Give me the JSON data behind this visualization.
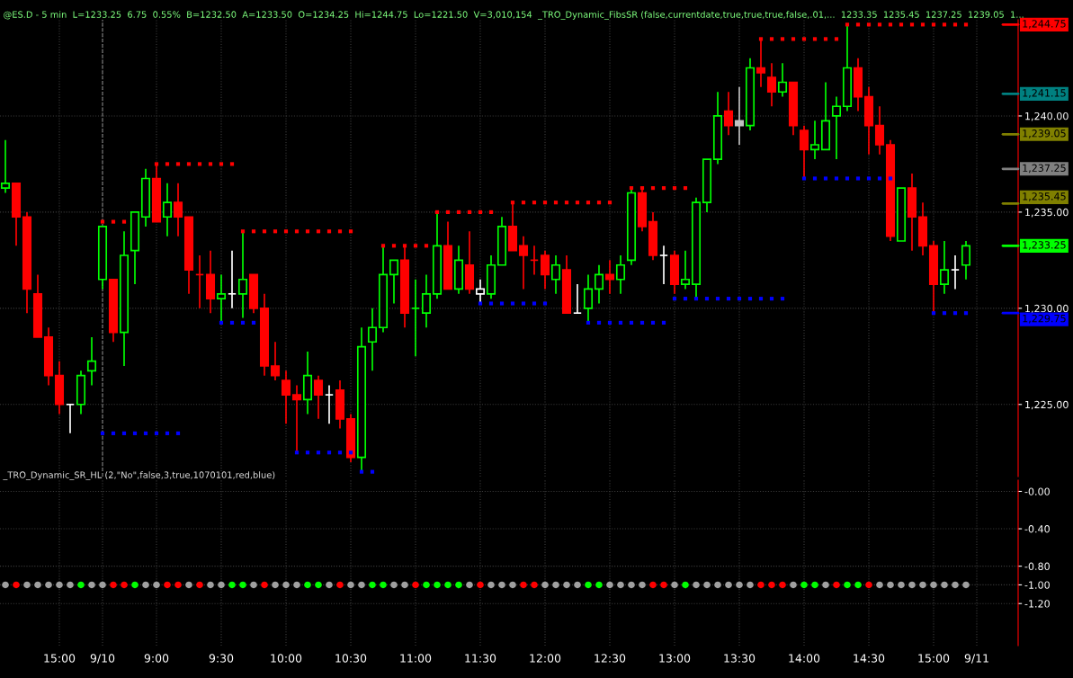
{
  "chart_data": [
    {
      "type": "candlestick",
      "title": "@ES.D - 5 min  L=1233.25  6.75  0.55%  B=1232.50  A=1233.50  O=1234.25  Hi=1244.75  Lo=1221.50  V=3,010,154  _TRO_Dynamic_FibsSR (false,currentdate,true,true,true,false,.01,...  1233.35  1235.45  1237.25  1239.05  1...",
      "categories": [
        null,
        null,
        null,
        null,
        null,
        "15:00",
        null,
        null,
        null,
        "9/10",
        null,
        null,
        null,
        null,
        "9:00",
        null,
        null,
        null,
        null,
        null,
        "9:30",
        null,
        null,
        null,
        null,
        null,
        "10:00",
        null,
        null,
        null,
        null,
        null,
        "10:30",
        null,
        null,
        null,
        null,
        null,
        "11:00",
        null,
        null,
        null,
        null,
        null,
        "11:30",
        null,
        null,
        null,
        null,
        null,
        "12:00",
        null,
        null,
        null,
        null,
        null,
        "12:30",
        null,
        null,
        null,
        null,
        null,
        "13:00",
        null,
        null,
        null,
        null,
        null,
        "13:30",
        null,
        null,
        null,
        null,
        null,
        "14:00",
        null,
        null,
        null,
        null,
        null,
        "14:30",
        null,
        null,
        null,
        null,
        null,
        "15:00",
        null,
        null,
        null,
        "9/11"
      ],
      "ohlc": [
        [
          1236.25,
          1238.75,
          1236.0,
          1236.5
        ],
        [
          1236.5,
          1236.5,
          1233.25,
          1234.75
        ],
        [
          1234.75,
          1235.0,
          1229.75,
          1231.0
        ],
        [
          1230.75,
          1231.75,
          1228.5,
          1228.5
        ],
        [
          1228.5,
          1229.0,
          1226.0,
          1226.5
        ],
        [
          1226.5,
          1227.25,
          1224.5,
          1225.0
        ],
        [
          1225.0,
          1225.0,
          1223.5,
          1225.0
        ],
        [
          1225.0,
          1226.75,
          1224.5,
          1226.5
        ],
        [
          1226.75,
          1228.5,
          1226.0,
          1227.25
        ],
        [
          1231.5,
          1234.25,
          1231.0,
          1234.25
        ],
        [
          1231.5,
          1231.5,
          1228.25,
          1228.75
        ],
        [
          1228.75,
          1234.0,
          1227.0,
          1232.75
        ],
        [
          1233.0,
          1235.0,
          1231.25,
          1235.0
        ],
        [
          1234.75,
          1237.25,
          1234.25,
          1236.75
        ],
        [
          1236.75,
          1237.5,
          1234.5,
          1234.5
        ],
        [
          1234.75,
          1236.5,
          1233.75,
          1235.5
        ],
        [
          1235.5,
          1236.5,
          1233.75,
          1234.75
        ],
        [
          1234.75,
          1234.75,
          1230.75,
          1232.0
        ],
        [
          1231.75,
          1232.75,
          1230.0,
          1231.75
        ],
        [
          1231.75,
          1233.0,
          1229.75,
          1230.5
        ],
        [
          1230.5,
          1231.75,
          1229.25,
          1230.75
        ],
        [
          1230.75,
          1233.0,
          1230.0,
          1230.75
        ],
        [
          1230.75,
          1234.0,
          1229.5,
          1231.5
        ],
        [
          1231.75,
          1231.75,
          1229.75,
          1230.0
        ],
        [
          1230.0,
          1230.75,
          1226.5,
          1227.0
        ],
        [
          1227.0,
          1228.25,
          1226.25,
          1226.5
        ],
        [
          1226.25,
          1226.75,
          1224.0,
          1225.5
        ],
        [
          1225.5,
          1226.0,
          1222.5,
          1225.25
        ],
        [
          1225.25,
          1227.75,
          1224.5,
          1226.5
        ],
        [
          1226.25,
          1226.5,
          1224.25,
          1225.5
        ],
        [
          1225.5,
          1226.0,
          1224.0,
          1225.5
        ],
        [
          1225.75,
          1226.25,
          1223.75,
          1224.25
        ],
        [
          1224.25,
          1224.5,
          1222.0,
          1222.25
        ],
        [
          1222.25,
          1229.0,
          1221.5,
          1228.0
        ],
        [
          1228.25,
          1230.0,
          1226.75,
          1229.0
        ],
        [
          1229.0,
          1233.25,
          1228.75,
          1231.75
        ],
        [
          1231.75,
          1232.5,
          1230.25,
          1232.5
        ],
        [
          1232.5,
          1233.25,
          1229.0,
          1229.75
        ],
        [
          1230.0,
          1231.5,
          1227.5,
          1230.0
        ],
        [
          1229.75,
          1231.75,
          1229.0,
          1230.75
        ],
        [
          1230.75,
          1235.0,
          1230.5,
          1233.25
        ],
        [
          1233.25,
          1234.5,
          1231.0,
          1231.0
        ],
        [
          1231.0,
          1233.25,
          1230.75,
          1232.5
        ],
        [
          1232.25,
          1234.0,
          1230.75,
          1231.0
        ],
        [
          1230.75,
          1231.5,
          1230.25,
          1231.0
        ],
        [
          1230.75,
          1232.75,
          1230.5,
          1232.25
        ],
        [
          1232.25,
          1234.75,
          1232.25,
          1234.25
        ],
        [
          1234.25,
          1235.5,
          1233.0,
          1233.0
        ],
        [
          1233.25,
          1233.75,
          1231.0,
          1232.75
        ],
        [
          1232.5,
          1233.25,
          1231.75,
          1232.5
        ],
        [
          1232.75,
          1233.0,
          1231.0,
          1231.75
        ],
        [
          1231.5,
          1232.75,
          1230.75,
          1232.25
        ],
        [
          1232.0,
          1232.75,
          1229.75,
          1229.75
        ],
        [
          1229.75,
          1231.25,
          1229.75,
          1229.75
        ],
        [
          1230.0,
          1231.75,
          1229.25,
          1231.0
        ],
        [
          1231.0,
          1232.25,
          1230.25,
          1231.75
        ],
        [
          1231.75,
          1232.5,
          1230.75,
          1231.5
        ],
        [
          1231.5,
          1232.75,
          1230.75,
          1232.25
        ],
        [
          1232.5,
          1236.25,
          1232.25,
          1236.0
        ],
        [
          1236.0,
          1236.25,
          1234.0,
          1234.25
        ],
        [
          1234.5,
          1235.0,
          1232.5,
          1232.75
        ],
        [
          1232.75,
          1233.25,
          1231.25,
          1232.75
        ],
        [
          1232.75,
          1233.0,
          1230.75,
          1231.25
        ],
        [
          1231.25,
          1233.0,
          1231.0,
          1231.5
        ],
        [
          1231.25,
          1235.75,
          1230.5,
          1235.5
        ],
        [
          1235.5,
          1237.75,
          1235.0,
          1237.75
        ],
        [
          1237.75,
          1241.25,
          1237.5,
          1240.0
        ],
        [
          1240.25,
          1241.25,
          1239.0,
          1239.5
        ],
        [
          1239.75,
          1241.5,
          1238.5,
          1239.5
        ],
        [
          1239.5,
          1243.0,
          1239.25,
          1242.5
        ],
        [
          1242.5,
          1244.0,
          1241.5,
          1242.25
        ],
        [
          1242.0,
          1242.75,
          1240.5,
          1241.25
        ],
        [
          1241.25,
          1242.75,
          1241.0,
          1241.75
        ],
        [
          1241.75,
          1241.75,
          1239.0,
          1239.5
        ],
        [
          1239.25,
          1239.5,
          1236.75,
          1238.25
        ],
        [
          1238.25,
          1239.75,
          1237.75,
          1238.5
        ],
        [
          1238.25,
          1241.75,
          1238.25,
          1239.75
        ],
        [
          1240.0,
          1241.0,
          1237.75,
          1240.5
        ],
        [
          1240.5,
          1244.75,
          1240.25,
          1242.5
        ],
        [
          1242.5,
          1243.0,
          1240.25,
          1241.0
        ],
        [
          1241.0,
          1241.5,
          1238.0,
          1239.5
        ],
        [
          1239.5,
          1240.5,
          1238.0,
          1238.5
        ],
        [
          1238.5,
          1238.75,
          1233.5,
          1233.75
        ],
        [
          1233.5,
          1236.25,
          1233.5,
          1236.25
        ],
        [
          1236.25,
          1237.0,
          1233.0,
          1234.75
        ],
        [
          1234.75,
          1235.5,
          1232.75,
          1233.25
        ],
        [
          1233.25,
          1233.5,
          1229.75,
          1231.25
        ],
        [
          1231.25,
          1233.5,
          1230.75,
          1232.0
        ],
        [
          1232.0,
          1232.75,
          1231.0,
          1232.0
        ],
        [
          1232.25,
          1233.5,
          1231.5,
          1233.25
        ],
        null
      ],
      "colors": [
        "#00ff00",
        "#ff0000",
        "#ff0000",
        "#ff0000",
        "#ff0000",
        "#ff0000",
        "#ffffff",
        "#00ff00",
        "#00ff00",
        "#00ff00",
        "#ff0000",
        "#00ff00",
        "#00ff00",
        "#00ff00",
        "#ff0000",
        "#00ff00",
        "#ff0000",
        "#ff0000",
        "#ff0000",
        "#ff0000",
        "#00ff00",
        "#ffffff",
        "#00ff00",
        "#ff0000",
        "#ff0000",
        "#ff0000",
        "#ff0000",
        "#ff0000",
        "#00ff00",
        "#ff0000",
        "#ffffff",
        "#ff0000",
        "#ff0000",
        "#00ff00",
        "#00ff00",
        "#00ff00",
        "#00ff00",
        "#ff0000",
        "#00ff00",
        "#00ff00",
        "#00ff00",
        "#ff0000",
        "#00ff00",
        "#ff0000",
        "#ffffff",
        "#00ff00",
        "#00ff00",
        "#ff0000",
        "#ff0000",
        "#ff0000",
        "#ff0000",
        "#00ff00",
        "#ff0000",
        "#ffffff",
        "#00ff00",
        "#00ff00",
        "#ff0000",
        "#00ff00",
        "#00ff00",
        "#ff0000",
        "#ff0000",
        "#ffffff",
        "#ff0000",
        "#00ff00",
        "#00ff00",
        "#00ff00",
        "#00ff00",
        "#ff0000",
        "#c0c0c0",
        "#00ff00",
        "#ff0000",
        "#ff0000",
        "#00ff00",
        "#ff0000",
        "#ff0000",
        "#00ff00",
        "#00ff00",
        "#00ff00",
        "#00ff00",
        "#ff0000",
        "#ff0000",
        "#ff0000",
        "#ff0000",
        "#00ff00",
        "#ff0000",
        "#ff0000",
        "#ff0000",
        "#00ff00",
        "#ffffff",
        "#00ff00",
        null
      ],
      "series": [
        {
          "type": "scatter",
          "color": "#ff0000",
          "marker": "square",
          "values": [
            null,
            null,
            null,
            null,
            null,
            null,
            null,
            null,
            null,
            1234.5,
            1234.5,
            1234.5,
            null,
            null,
            1237.5,
            1237.5,
            1237.5,
            1237.5,
            1237.5,
            1237.5,
            1237.5,
            1237.5,
            1234.0,
            1234.0,
            1234.0,
            1234.0,
            1234.0,
            1234.0,
            1234.0,
            1234.0,
            1234.0,
            1234.0,
            1234.0,
            null,
            null,
            1233.25,
            1233.25,
            1233.25,
            1233.25,
            1233.25,
            1235.0,
            1235.0,
            1235.0,
            1235.0,
            1235.0,
            1235.0,
            null,
            1235.5,
            1235.5,
            1235.5,
            1235.5,
            1235.5,
            1235.5,
            1235.5,
            1235.5,
            1235.5,
            1235.5,
            null,
            1236.25,
            1236.25,
            1236.25,
            1236.25,
            1236.25,
            1236.25,
            null,
            null,
            null,
            null,
            null,
            null,
            1244.0,
            1244.0,
            1244.0,
            1244.0,
            1244.0,
            1244.0,
            1244.0,
            1244.0,
            1244.75,
            1244.75,
            1244.75,
            1244.75,
            1244.75,
            1244.75,
            1244.75,
            1244.75,
            1244.75,
            1244.75,
            1244.75,
            1244.75,
            null
          ]
        },
        {
          "type": "scatter",
          "color": "#0000ff",
          "marker": "square",
          "values": [
            null,
            null,
            null,
            null,
            null,
            null,
            null,
            null,
            null,
            1223.5,
            1223.5,
            1223.5,
            1223.5,
            1223.5,
            1223.5,
            1223.5,
            1223.5,
            null,
            null,
            null,
            1229.25,
            1229.25,
            1229.25,
            1229.25,
            null,
            null,
            null,
            1222.5,
            1222.5,
            1222.5,
            1222.5,
            1222.5,
            1222.5,
            1221.5,
            1221.5,
            null,
            null,
            null,
            null,
            null,
            null,
            null,
            null,
            null,
            1230.25,
            1230.25,
            1230.25,
            1230.25,
            1230.25,
            1230.25,
            1230.25,
            null,
            null,
            null,
            1229.25,
            1229.25,
            1229.25,
            1229.25,
            1229.25,
            1229.25,
            1229.25,
            1229.25,
            1230.5,
            1230.5,
            1230.5,
            1230.5,
            1230.5,
            1230.5,
            1230.5,
            1230.5,
            1230.5,
            1230.5,
            1230.5,
            null,
            1236.75,
            1236.75,
            1236.75,
            1236.75,
            1236.75,
            1236.75,
            1236.75,
            1236.75,
            1236.75,
            null,
            null,
            null,
            1229.75,
            1229.75,
            1229.75,
            1229.75,
            null
          ]
        }
      ],
      "ylim": [
        1221.25,
        1245.0
      ],
      "yticks": [
        {
          "value": 1225,
          "label": "1,225.00"
        },
        {
          "value": 1230,
          "label": "1,230.00"
        },
        {
          "value": 1235,
          "label": "1,235.00"
        },
        {
          "value": 1240,
          "label": "1,240.00"
        }
      ],
      "ref_lines": [
        {
          "axis": "y",
          "value": 1244.75,
          "label": "1,244.75",
          "color": "#ff0000"
        },
        {
          "axis": "y",
          "value": 1241.15,
          "label": "1,241.15",
          "color": "#008080"
        },
        {
          "axis": "y",
          "value": 1239.05,
          "label": "1,239.05",
          "color": "#808000"
        },
        {
          "axis": "y",
          "value": 1237.25,
          "label": "1,237.25",
          "color": "#808080"
        },
        {
          "axis": "y",
          "value": 1235.45,
          "label": "1,235.45",
          "color": "#808000"
        },
        {
          "axis": "y",
          "value": 1233.25,
          "label": "1,233.25",
          "color": "#00ff00"
        },
        {
          "axis": "y",
          "value": 1229.75,
          "label": "1,229.75",
          "color": "#0000ff"
        },
        {
          "axis": "x",
          "value": "9/10",
          "color": "#808080",
          "line_style": "dashed"
        }
      ],
      "grid": true,
      "tick_labels": "y"
    },
    {
      "type": "scatter",
      "title": "_TRO_Dynamic_SR_HL (2,\"No\",false,3,true,1070101,red,blue)",
      "marker": "circle",
      "categories": [
        null,
        null,
        null,
        null,
        null,
        "15:00",
        null,
        null,
        null,
        "9/10",
        null,
        null,
        null,
        null,
        "9:00",
        null,
        null,
        null,
        null,
        null,
        "9:30",
        null,
        null,
        null,
        null,
        null,
        "10:00",
        null,
        null,
        null,
        null,
        null,
        "10:30",
        null,
        null,
        null,
        null,
        null,
        "11:00",
        null,
        null,
        null,
        null,
        null,
        "11:30",
        null,
        null,
        null,
        null,
        null,
        "12:00",
        null,
        null,
        null,
        null,
        null,
        "12:30",
        null,
        null,
        null,
        null,
        null,
        "13:00",
        null,
        null,
        null,
        null,
        null,
        "13:30",
        null,
        null,
        null,
        null,
        null,
        "14:00",
        null,
        null,
        null,
        null,
        null,
        "14:30",
        null,
        null,
        null,
        null,
        null,
        "15:00",
        null,
        null,
        null,
        "9/11"
      ],
      "values": [
        -1,
        -1,
        -1,
        -1,
        -1,
        -1,
        -1,
        -1,
        -1,
        -1,
        -1,
        -1,
        -1,
        -1,
        -1,
        -1,
        -1,
        -1,
        -1,
        -1,
        -1,
        -1,
        -1,
        -1,
        -1,
        -1,
        -1,
        -1,
        -1,
        -1,
        -1,
        -1,
        -1,
        -1,
        -1,
        -1,
        -1,
        -1,
        -1,
        -1,
        -1,
        -1,
        -1,
        -1,
        -1,
        -1,
        -1,
        -1,
        -1,
        -1,
        -1,
        -1,
        -1,
        -1,
        -1,
        -1,
        -1,
        -1,
        -1,
        -1,
        -1,
        -1,
        -1,
        -1,
        -1,
        -1,
        -1,
        -1,
        -1,
        -1,
        -1,
        -1,
        -1,
        -1,
        -1,
        -1,
        -1,
        -1,
        -1,
        -1,
        -1,
        -1,
        -1,
        -1,
        -1,
        -1,
        -1,
        -1,
        -1,
        -1,
        null
      ],
      "colors": [
        "#a0a0a0",
        "#ff0000",
        "#a0a0a0",
        "#a0a0a0",
        "#a0a0a0",
        "#a0a0a0",
        "#a0a0a0",
        "#00ff00",
        "#a0a0a0",
        "#a0a0a0",
        "#ff0000",
        "#ff0000",
        "#00ff00",
        "#a0a0a0",
        "#a0a0a0",
        "#ff0000",
        "#ff0000",
        "#a0a0a0",
        "#ff0000",
        "#a0a0a0",
        "#a0a0a0",
        "#00ff00",
        "#00ff00",
        "#a0a0a0",
        "#ff0000",
        "#a0a0a0",
        "#a0a0a0",
        "#a0a0a0",
        "#00ff00",
        "#00ff00",
        "#a0a0a0",
        "#ff0000",
        "#a0a0a0",
        "#a0a0a0",
        "#00ff00",
        "#00ff00",
        "#a0a0a0",
        "#a0a0a0",
        "#ff0000",
        "#00ff00",
        "#00ff00",
        "#00ff00",
        "#00ff00",
        "#a0a0a0",
        "#ff0000",
        "#a0a0a0",
        "#a0a0a0",
        "#a0a0a0",
        "#ff0000",
        "#ff0000",
        "#a0a0a0",
        "#a0a0a0",
        "#a0a0a0",
        "#a0a0a0",
        "#00ff00",
        "#00ff00",
        "#a0a0a0",
        "#a0a0a0",
        "#a0a0a0",
        "#a0a0a0",
        "#ff0000",
        "#ff0000",
        "#a0a0a0",
        "#00ff00",
        "#a0a0a0",
        "#a0a0a0",
        "#a0a0a0",
        "#a0a0a0",
        "#a0a0a0",
        "#a0a0a0",
        "#ff0000",
        "#ff0000",
        "#ff0000",
        "#a0a0a0",
        "#00ff00",
        "#00ff00",
        "#a0a0a0",
        "#ff0000",
        "#00ff00",
        "#00ff00",
        "#ff0000",
        "#a0a0a0",
        "#a0a0a0",
        "#a0a0a0",
        "#a0a0a0",
        "#a0a0a0",
        "#a0a0a0",
        "#a0a0a0",
        "#a0a0a0",
        "#a0a0a0",
        null
      ],
      "ylim": [
        -1.65,
        0.12
      ],
      "yticks": [
        {
          "value": 0,
          "label": "-0.00"
        },
        {
          "value": -0.4,
          "label": "-0.40"
        },
        {
          "value": -0.8,
          "label": "-0.80"
        },
        {
          "value": -1.0,
          "label": "-1.00"
        },
        {
          "value": -1.2,
          "label": "-1.20"
        }
      ],
      "grid": true
    }
  ]
}
